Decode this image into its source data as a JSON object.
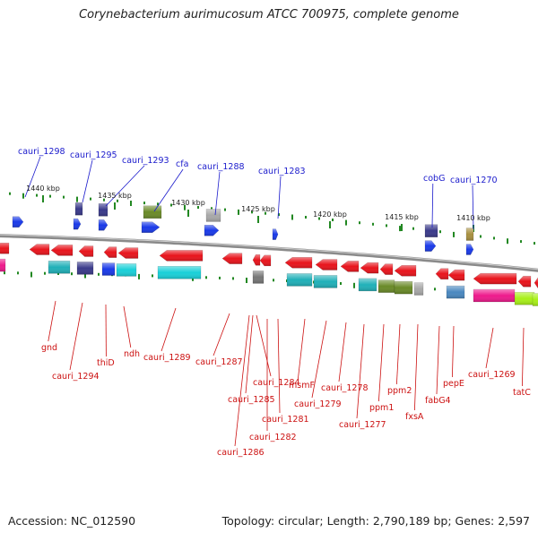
{
  "title": "Corynebacterium aurimucosum ATCC 700975, complete genome",
  "footer": {
    "accession": "Accession: NC_012590",
    "summary": "Topology: circular; Length: 2,790,189 bp; Genes: 2,597"
  },
  "scale": {
    "tick_labels": [
      "1440 kbp",
      "1435 kbp",
      "1430 kbp",
      "1425 kbp",
      "1420 kbp",
      "1415 kbp",
      "1410 kbp"
    ]
  },
  "colors": {
    "backbone": "#8a8a8a",
    "tick_green": "#228822",
    "top_label": "#1a1acc",
    "bottom_label": "#cc1111",
    "red_gene": "#e8141c",
    "cyan": "#19d0d8",
    "teal": "#20b0b8",
    "navy": "#3a3a8a",
    "blue": "#1a3ae8",
    "olive": "#6a8a28",
    "grey": "#a8a8a8",
    "pink": "#ee1a8c",
    "lime": "#a8f018",
    "steel": "#4a88c0"
  },
  "labels": {
    "top": [
      "cauri_1298",
      "cauri_1295",
      "cauri_1293",
      "cfa",
      "cauri_1288",
      "cauri_1283",
      "cobG",
      "cauri_1270"
    ],
    "bottom": [
      "gnd",
      "cauri_1294",
      "thiD",
      "ndh",
      "cauri_1289",
      "cauri_1287",
      "cauri_1284",
      "cauri_1285",
      "cauri_1286",
      "cauri_1281",
      "cauri_1282",
      "msmF",
      "cauri_1279",
      "cauri_1278",
      "cauri_1277",
      "ppm1",
      "ppm2",
      "fxsA",
      "fabG4",
      "pepE",
      "cauri_1269",
      "tatC"
    ]
  }
}
